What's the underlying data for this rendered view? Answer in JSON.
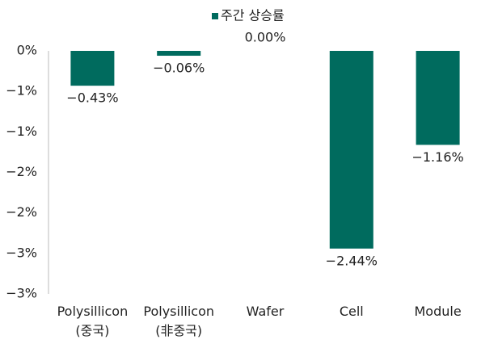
{
  "chart_data": {
    "type": "bar",
    "categories": [
      "Polysillicon\n(중국)",
      "Polysillicon\n(非중국)",
      "Wafer",
      "Cell",
      "Module"
    ],
    "series": [
      {
        "name": "주간 상승률",
        "color": "#006b5e",
        "values": [
          -0.43,
          -0.06,
          0,
          -2.44,
          -1.16
        ],
        "value_labels": [
          "−0.43%",
          "−0.06%",
          "0.00%",
          "−2.44%",
          "−1.16%"
        ]
      }
    ],
    "ylim": [
      -3,
      0
    ],
    "yticks": [
      {
        "value": 0,
        "label": "0%"
      },
      {
        "value": -0.5,
        "label": "−1%"
      },
      {
        "value": -1,
        "label": "−1%"
      },
      {
        "value": -1.5,
        "label": "−2%"
      },
      {
        "value": -2,
        "label": "−2%"
      },
      {
        "value": -2.5,
        "label": "−3%"
      },
      {
        "value": -3,
        "label": "−3%"
      }
    ],
    "legend": "top"
  }
}
